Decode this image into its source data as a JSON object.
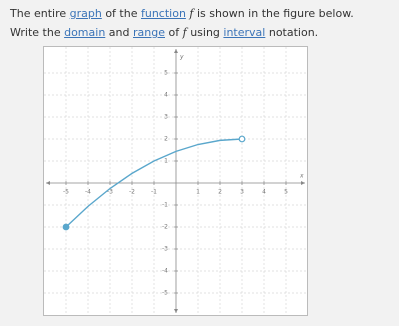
{
  "text": {
    "line1": [
      "The entire",
      "graph",
      "of the",
      "function",
      "f",
      "is shown in the figure below."
    ],
    "line2": [
      "Write the",
      "domain",
      "and",
      "range",
      "of",
      "f",
      "using",
      "interval",
      "notation."
    ]
  },
  "chart_data": {
    "type": "line",
    "xlabel": "x",
    "ylabel": "y",
    "x": [
      -5,
      -4,
      -3,
      -2,
      -1,
      0,
      1,
      2,
      3
    ],
    "series": [
      {
        "color": "#5aa7cc",
        "values": [
          -2,
          -1.0625,
          -0.25,
          0.4375,
          1,
          1.4375,
          1.75,
          1.9375,
          2
        ]
      }
    ],
    "closed_start": true,
    "open_end": true,
    "xlim": [
      -6,
      6
    ],
    "ylim": [
      -6,
      6
    ],
    "xticks": [
      -5,
      -4,
      -3,
      -2,
      -1,
      1,
      2,
      3,
      4,
      5
    ],
    "yticks": [
      -5,
      -4,
      -3,
      -2,
      -1,
      1,
      2,
      3,
      4,
      5
    ],
    "grid": true
  }
}
